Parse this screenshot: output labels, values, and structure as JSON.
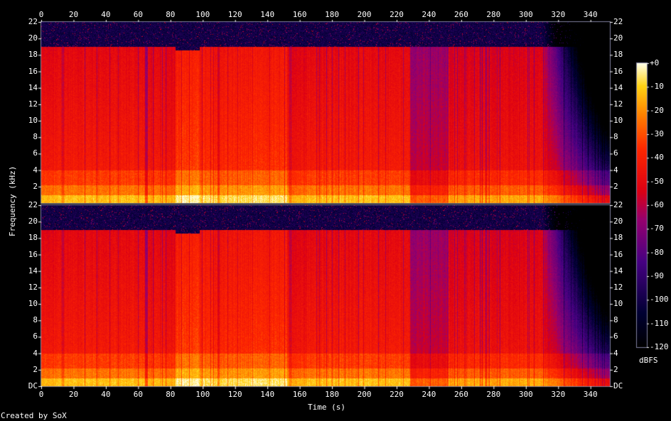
{
  "credit": "Created by SoX",
  "chart_data": {
    "type": "heatmap",
    "xlabel": "Time (s)",
    "ylabel": "Frequency (kHz)",
    "colorbar_label": "dBFS",
    "x_ticks": [
      "0",
      "20",
      "40",
      "60",
      "80",
      "100",
      "120",
      "140",
      "160",
      "180",
      "200",
      "220",
      "240",
      "260",
      "280",
      "300",
      "320",
      "340"
    ],
    "y_ticks": [
      "DC",
      "2",
      "4",
      "6",
      "8",
      "10",
      "12",
      "14",
      "16",
      "18",
      "20",
      "22"
    ],
    "colorbar_ticks": [
      "+0",
      "-10",
      "-20",
      "-30",
      "-40",
      "-50",
      "-60",
      "-70",
      "-80",
      "-90",
      "-100",
      "-110",
      "-120"
    ],
    "xlim": [
      0,
      352
    ],
    "ylim_khz": [
      0,
      22
    ],
    "color_range_dbfs": [
      -120,
      0
    ],
    "channels": 2,
    "cutoff_khz": 19,
    "colors": {
      "loud": "#ffffb0",
      "mid": "#ff7a00",
      "quiet": "#e00000",
      "low": "#6a0090",
      "floor": "#000010"
    }
  }
}
